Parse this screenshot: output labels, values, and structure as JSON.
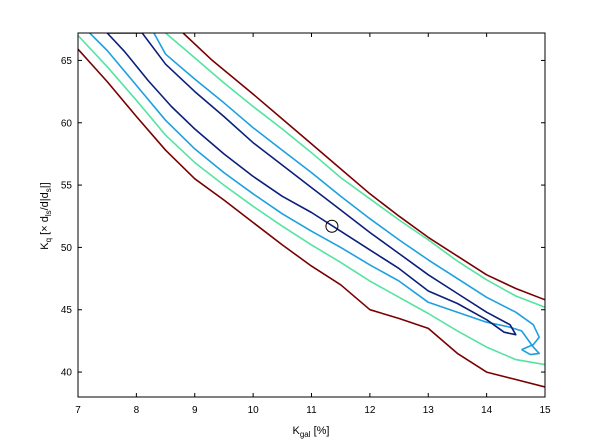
{
  "chart_data": {
    "type": "line",
    "title": "",
    "xlabel": {
      "main": "K",
      "sub": "gal",
      "rest": " [%]"
    },
    "ylabel": {
      "main": "K",
      "sub": "q",
      "mid1": " [× d",
      "sub2": "ls",
      "mid2": "/d|d",
      "sub3": "s",
      "end": "|]"
    },
    "xlim": [
      7,
      15
    ],
    "ylim": [
      38,
      67.2
    ],
    "xticks": [
      "7",
      "8",
      "9",
      "10",
      "11",
      "12",
      "13",
      "14",
      "15"
    ],
    "yticks": [
      "40",
      "45",
      "50",
      "55",
      "60",
      "65"
    ],
    "grid": false,
    "marker": {
      "x": 11.35,
      "y": 51.7
    },
    "series": [
      {
        "color": "#7a0000",
        "closed": false,
        "points": [
          [
            7,
            65.9
          ],
          [
            7.5,
            63.3
          ],
          [
            8,
            60.5
          ],
          [
            8.5,
            57.8
          ],
          [
            9,
            55.5
          ],
          [
            9.5,
            53.8
          ],
          [
            10,
            52
          ],
          [
            10.5,
            50.2
          ],
          [
            11,
            48.5
          ],
          [
            11.5,
            47
          ],
          [
            12,
            45
          ],
          [
            12.5,
            44.3
          ],
          [
            13,
            43.5
          ],
          [
            13.5,
            41.5
          ],
          [
            14,
            40
          ],
          [
            14.5,
            39.4
          ],
          [
            15,
            38.8
          ]
        ]
      },
      {
        "color": "#7a0000",
        "closed": false,
        "points": [
          [
            8.8,
            67.2
          ],
          [
            9.3,
            65
          ],
          [
            10,
            62.3
          ],
          [
            10.5,
            60.3
          ],
          [
            11,
            58.3
          ],
          [
            11.5,
            56.3
          ],
          [
            12,
            54.3
          ],
          [
            12.5,
            52.5
          ],
          [
            13,
            50.8
          ],
          [
            13.5,
            49.3
          ],
          [
            14,
            47.8
          ],
          [
            14.5,
            46.7
          ],
          [
            15,
            45.8
          ]
        ]
      },
      {
        "color": "#55e3a2",
        "closed": false,
        "points": [
          [
            7,
            67
          ],
          [
            7.5,
            64.5
          ],
          [
            8,
            61.8
          ],
          [
            8.5,
            59
          ],
          [
            9,
            56.8
          ],
          [
            9.5,
            55
          ],
          [
            10,
            53.3
          ],
          [
            10.5,
            51.7
          ],
          [
            11,
            50.2
          ],
          [
            11.5,
            48.8
          ],
          [
            12,
            47.3
          ],
          [
            12.5,
            46
          ],
          [
            13,
            44.7
          ],
          [
            13.5,
            43.3
          ],
          [
            14,
            42
          ],
          [
            14.5,
            41
          ],
          [
            15,
            40.6
          ]
        ]
      },
      {
        "color": "#55e3a2",
        "closed": false,
        "points": [
          [
            8.5,
            67.2
          ],
          [
            9,
            65.2
          ],
          [
            9.5,
            63.2
          ],
          [
            10,
            61.3
          ],
          [
            10.5,
            59.5
          ],
          [
            11,
            57.6
          ],
          [
            11.5,
            55.6
          ],
          [
            12,
            53.9
          ],
          [
            12.5,
            52.2
          ],
          [
            13,
            50.6
          ],
          [
            13.5,
            48.9
          ],
          [
            14,
            47.4
          ],
          [
            14.5,
            46.1
          ],
          [
            15,
            45.2
          ]
        ]
      },
      {
        "color": "#1da0e0",
        "closed": false,
        "points": [
          [
            7.2,
            67.2
          ],
          [
            7.5,
            65.8
          ],
          [
            8,
            63
          ],
          [
            8.5,
            60.2
          ],
          [
            9,
            57.9
          ],
          [
            9.5,
            56
          ],
          [
            10,
            54.3
          ],
          [
            10.5,
            52.7
          ],
          [
            11,
            51.3
          ],
          [
            11.5,
            50
          ],
          [
            12,
            48.6
          ],
          [
            12.5,
            47.3
          ],
          [
            13,
            45.6
          ],
          [
            13.5,
            44.8
          ],
          [
            14,
            44
          ],
          [
            14.4,
            43.6
          ],
          [
            14.6,
            43.3
          ],
          [
            14.8,
            42
          ],
          [
            14.9,
            41.5
          ],
          [
            14.75,
            41.4
          ],
          [
            14.6,
            41.8
          ]
        ]
      },
      {
        "color": "#1da0e0",
        "closed": false,
        "points": [
          [
            14.6,
            41.8
          ],
          [
            14.8,
            42.2
          ],
          [
            14.9,
            42.8
          ],
          [
            14.8,
            43.8
          ],
          [
            14.5,
            44.8
          ],
          [
            14,
            46
          ],
          [
            13.5,
            47.5
          ],
          [
            13,
            49
          ],
          [
            12.5,
            50.6
          ],
          [
            12,
            52.3
          ],
          [
            11.5,
            54.1
          ],
          [
            11,
            56
          ],
          [
            10.5,
            57.8
          ],
          [
            10,
            59.6
          ],
          [
            9.5,
            61.6
          ],
          [
            9,
            63.5
          ],
          [
            8.5,
            65.5
          ],
          [
            8.3,
            67.2
          ]
        ]
      },
      {
        "color": "#0c1f7a",
        "closed": true,
        "points": [
          [
            7.5,
            67.2
          ],
          [
            7.8,
            65.7
          ],
          [
            8.2,
            63.4
          ],
          [
            8.6,
            61.3
          ],
          [
            9,
            59.5
          ],
          [
            9.5,
            57.5
          ],
          [
            10,
            55.7
          ],
          [
            10.5,
            54.1
          ],
          [
            11,
            52.8
          ],
          [
            11.5,
            51.3
          ],
          [
            12,
            49.8
          ],
          [
            12.5,
            48.3
          ],
          [
            13,
            46.5
          ],
          [
            13.5,
            45.5
          ],
          [
            14,
            44.2
          ],
          [
            14.3,
            43.2
          ],
          [
            14.5,
            43
          ],
          [
            14.4,
            43.8
          ],
          [
            14,
            44.8
          ],
          [
            13.5,
            46.3
          ],
          [
            13,
            47.8
          ],
          [
            12.5,
            49.5
          ],
          [
            12,
            51.2
          ],
          [
            11.5,
            53
          ],
          [
            11,
            54.8
          ],
          [
            10.5,
            56.6
          ],
          [
            10,
            58.4
          ],
          [
            9.5,
            60.5
          ],
          [
            9,
            62.5
          ],
          [
            8.5,
            64.7
          ],
          [
            8.1,
            67.2
          ]
        ]
      }
    ]
  }
}
